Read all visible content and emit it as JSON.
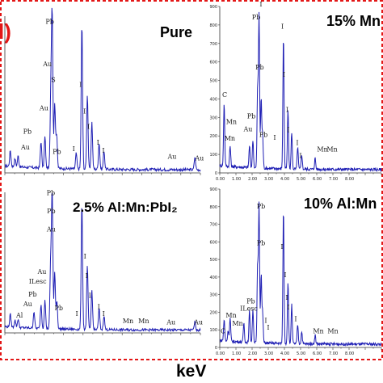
{
  "figure": {
    "part_label": "l)",
    "part_label_color": "#e31515",
    "x_axis_label": "keV",
    "dashed_box_color": "#e31515",
    "spectrum_color": "#1f1fb4"
  },
  "chart_data": [
    {
      "type": "line",
      "title": "Pure",
      "xlim": [
        0,
        10
      ],
      "ylim": [
        0,
        1
      ],
      "x_tick_labels": [],
      "y_tick_labels": [],
      "peaks": [
        {
          "x": 0.28,
          "y": 0.1
        },
        {
          "x": 0.52,
          "y": 0.05
        },
        {
          "x": 0.68,
          "y": 0.07
        },
        {
          "x": 1.85,
          "y": 0.17
        },
        {
          "x": 2.05,
          "y": 0.2
        },
        {
          "x": 2.35,
          "y": 0.45
        },
        {
          "x": 2.42,
          "y": 0.98
        },
        {
          "x": 2.55,
          "y": 0.42
        },
        {
          "x": 2.65,
          "y": 0.22
        },
        {
          "x": 3.65,
          "y": 0.1
        },
        {
          "x": 3.94,
          "y": 0.93
        },
        {
          "x": 4.22,
          "y": 0.48
        },
        {
          "x": 4.45,
          "y": 0.3
        },
        {
          "x": 4.82,
          "y": 0.17
        },
        {
          "x": 5.07,
          "y": 0.12
        },
        {
          "x": 9.72,
          "y": 0.08
        }
      ],
      "peak_labels": [
        {
          "text": "Pb",
          "x": 2.3,
          "y": 0.95
        },
        {
          "text": "Au",
          "x": 2.18,
          "y": 0.68
        },
        {
          "text": "Au",
          "x": 2.0,
          "y": 0.4
        },
        {
          "text": "S",
          "x": 2.48,
          "y": 0.58
        },
        {
          "text": "Pb",
          "x": 1.15,
          "y": 0.25
        },
        {
          "text": "Au",
          "x": 1.05,
          "y": 0.15
        },
        {
          "text": "Pb",
          "x": 2.66,
          "y": 0.12
        },
        {
          "text": "I",
          "x": 3.52,
          "y": 0.14
        },
        {
          "text": "I",
          "x": 3.88,
          "y": 0.55
        },
        {
          "text": "I",
          "x": 4.08,
          "y": 0.38
        },
        {
          "text": "I",
          "x": 4.28,
          "y": 0.28
        },
        {
          "text": "I",
          "x": 4.76,
          "y": 0.18
        },
        {
          "text": "I",
          "x": 5.04,
          "y": 0.13
        },
        {
          "text": "Au",
          "x": 8.55,
          "y": 0.09
        },
        {
          "text": "Au",
          "x": 9.95,
          "y": 0.08
        }
      ]
    },
    {
      "type": "line",
      "title": "15% Mn",
      "xlim": [
        0,
        10
      ],
      "ylim": [
        0,
        900
      ],
      "x_tick_labels": [
        "0.00",
        "1.00",
        "2.00",
        "3.00",
        "4.00",
        "5.00",
        "6.00",
        "7.00",
        "8.00"
      ],
      "y_tick_labels": [
        "0",
        "100",
        "200",
        "300",
        "400",
        "500",
        "600",
        "700",
        "800",
        "900"
      ],
      "peaks": [
        {
          "x": 0.27,
          "y": 340
        },
        {
          "x": 0.64,
          "y": 110
        },
        {
          "x": 1.84,
          "y": 120
        },
        {
          "x": 2.05,
          "y": 150
        },
        {
          "x": 2.34,
          "y": 420
        },
        {
          "x": 2.43,
          "y": 830
        },
        {
          "x": 2.56,
          "y": 380
        },
        {
          "x": 2.65,
          "y": 180
        },
        {
          "x": 3.94,
          "y": 720
        },
        {
          "x": 4.22,
          "y": 320
        },
        {
          "x": 4.45,
          "y": 200
        },
        {
          "x": 4.82,
          "y": 120
        },
        {
          "x": 5.07,
          "y": 80
        },
        {
          "x": 5.9,
          "y": 60
        }
      ],
      "peak_labels": [
        {
          "text": "Pb",
          "x": 2.25,
          "y": 830
        },
        {
          "text": "Pb",
          "x": 2.47,
          "y": 560
        },
        {
          "text": "I",
          "x": 2.55,
          "y": 900
        },
        {
          "text": "I",
          "x": 3.88,
          "y": 780
        },
        {
          "text": "I",
          "x": 3.97,
          "y": 520
        },
        {
          "text": "I",
          "x": 4.17,
          "y": 330
        },
        {
          "text": "I",
          "x": 4.24,
          "y": 220
        },
        {
          "text": "I",
          "x": 4.8,
          "y": 150
        },
        {
          "text": "I",
          "x": 5.0,
          "y": 80
        },
        {
          "text": "C",
          "x": 0.3,
          "y": 410
        },
        {
          "text": "Mn",
          "x": 0.72,
          "y": 265
        },
        {
          "text": "Mn",
          "x": 0.62,
          "y": 175
        },
        {
          "text": "Pb",
          "x": 1.95,
          "y": 295
        },
        {
          "text": "Au",
          "x": 1.75,
          "y": 225
        },
        {
          "text": "Pb",
          "x": 2.7,
          "y": 195
        },
        {
          "text": "I",
          "x": 3.4,
          "y": 180
        },
        {
          "text": "Mn",
          "x": 6.35,
          "y": 115
        },
        {
          "text": "Mn",
          "x": 6.95,
          "y": 115
        }
      ]
    },
    {
      "type": "line",
      "title": "2.5% Al:Mn:PbI₂",
      "xlim": [
        0,
        10
      ],
      "ylim": [
        0,
        1
      ],
      "x_tick_labels": [],
      "y_tick_labels": [],
      "peaks": [
        {
          "x": 0.28,
          "y": 0.09
        },
        {
          "x": 0.52,
          "y": 0.05
        },
        {
          "x": 0.68,
          "y": 0.06
        },
        {
          "x": 1.49,
          "y": 0.12
        },
        {
          "x": 1.85,
          "y": 0.17
        },
        {
          "x": 2.05,
          "y": 0.2
        },
        {
          "x": 2.34,
          "y": 0.45
        },
        {
          "x": 2.42,
          "y": 0.97
        },
        {
          "x": 2.55,
          "y": 0.4
        },
        {
          "x": 2.66,
          "y": 0.2
        },
        {
          "x": 3.94,
          "y": 0.9
        },
        {
          "x": 4.22,
          "y": 0.45
        },
        {
          "x": 4.45,
          "y": 0.28
        },
        {
          "x": 4.82,
          "y": 0.15
        },
        {
          "x": 5.07,
          "y": 0.1
        },
        {
          "x": 9.72,
          "y": 0.06
        }
      ],
      "peak_labels": [
        {
          "text": "Pb",
          "x": 2.35,
          "y": 0.98
        },
        {
          "text": "Pb",
          "x": 2.37,
          "y": 0.85
        },
        {
          "text": "Au",
          "x": 2.37,
          "y": 0.72
        },
        {
          "text": "Au",
          "x": 1.9,
          "y": 0.42
        },
        {
          "text": "ILesc",
          "x": 1.68,
          "y": 0.35
        },
        {
          "text": "Pb",
          "x": 1.42,
          "y": 0.26
        },
        {
          "text": "Au",
          "x": 1.17,
          "y": 0.19
        },
        {
          "text": "Al",
          "x": 0.75,
          "y": 0.11
        },
        {
          "text": "Pb",
          "x": 2.76,
          "y": 0.16
        },
        {
          "text": "I",
          "x": 3.68,
          "y": 0.12
        },
        {
          "text": "I",
          "x": 4.1,
          "y": 0.53
        },
        {
          "text": "I",
          "x": 4.18,
          "y": 0.39
        },
        {
          "text": "I",
          "x": 4.35,
          "y": 0.25
        },
        {
          "text": "I",
          "x": 4.8,
          "y": 0.17
        },
        {
          "text": "I",
          "x": 5.05,
          "y": 0.12
        },
        {
          "text": "Mn",
          "x": 6.3,
          "y": 0.07
        },
        {
          "text": "Mn",
          "x": 7.1,
          "y": 0.07
        },
        {
          "text": "Au",
          "x": 8.5,
          "y": 0.06
        },
        {
          "text": "Au",
          "x": 9.9,
          "y": 0.06
        }
      ]
    },
    {
      "type": "line",
      "title": "10% Al:Mn",
      "xlim": [
        0,
        10
      ],
      "ylim": [
        0,
        900
      ],
      "x_tick_labels": [
        "0.00",
        "1.00",
        "2.00",
        "3.00",
        "4.00",
        "5.00",
        "6.00",
        "7.00",
        "8.00"
      ],
      "y_tick_labels": [
        "0",
        "100",
        "200",
        "300",
        "400",
        "500",
        "600",
        "700",
        "800",
        "900"
      ],
      "peaks": [
        {
          "x": 0.27,
          "y": 120
        },
        {
          "x": 0.52,
          "y": 60
        },
        {
          "x": 0.64,
          "y": 130
        },
        {
          "x": 1.49,
          "y": 110
        },
        {
          "x": 1.84,
          "y": 180
        },
        {
          "x": 2.05,
          "y": 190
        },
        {
          "x": 2.34,
          "y": 430
        },
        {
          "x": 2.43,
          "y": 780
        },
        {
          "x": 2.56,
          "y": 390
        },
        {
          "x": 2.65,
          "y": 170
        },
        {
          "x": 3.94,
          "y": 760
        },
        {
          "x": 4.22,
          "y": 350
        },
        {
          "x": 4.45,
          "y": 220
        },
        {
          "x": 4.82,
          "y": 110
        },
        {
          "x": 5.07,
          "y": 70
        },
        {
          "x": 5.9,
          "y": 50
        }
      ],
      "peak_labels": [
        {
          "text": "Pb",
          "x": 2.55,
          "y": 790
        },
        {
          "text": "Pb",
          "x": 2.55,
          "y": 580
        },
        {
          "text": "I",
          "x": 3.85,
          "y": 560
        },
        {
          "text": "I",
          "x": 4.05,
          "y": 400
        },
        {
          "text": "I",
          "x": 4.15,
          "y": 270
        },
        {
          "text": "I",
          "x": 4.25,
          "y": 215
        },
        {
          "text": "I",
          "x": 4.7,
          "y": 150
        },
        {
          "text": "I",
          "x": 2.85,
          "y": 140
        },
        {
          "text": "I",
          "x": 3.0,
          "y": 100
        },
        {
          "text": "Pb",
          "x": 1.92,
          "y": 250
        },
        {
          "text": "ILesc",
          "x": 1.8,
          "y": 210
        },
        {
          "text": "Mn",
          "x": 0.7,
          "y": 170
        },
        {
          "text": "Mn",
          "x": 1.1,
          "y": 125
        },
        {
          "text": "C",
          "x": 0.2,
          "y": 80
        },
        {
          "text": "Mn",
          "x": 6.1,
          "y": 80
        },
        {
          "text": "Mn",
          "x": 7.0,
          "y": 80
        }
      ]
    }
  ]
}
